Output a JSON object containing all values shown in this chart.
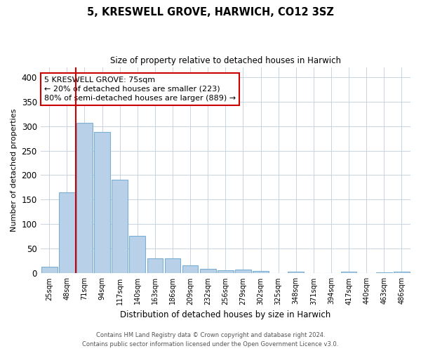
{
  "title": "5, KRESWELL GROVE, HARWICH, CO12 3SZ",
  "subtitle": "Size of property relative to detached houses in Harwich",
  "xlabel": "Distribution of detached houses by size in Harwich",
  "ylabel": "Number of detached properties",
  "categories": [
    "25sqm",
    "48sqm",
    "71sqm",
    "94sqm",
    "117sqm",
    "140sqm",
    "163sqm",
    "186sqm",
    "209sqm",
    "232sqm",
    "256sqm",
    "279sqm",
    "302sqm",
    "325sqm",
    "348sqm",
    "371sqm",
    "394sqm",
    "417sqm",
    "440sqm",
    "463sqm",
    "486sqm"
  ],
  "values": [
    14,
    165,
    307,
    288,
    191,
    77,
    31,
    31,
    16,
    9,
    7,
    8,
    5,
    0,
    4,
    0,
    0,
    3,
    0,
    2,
    3
  ],
  "bar_color": "#b8d0e8",
  "bar_edgecolor": "#7bafd4",
  "vline_color": "#cc0000",
  "annotation_text": "5 KRESWELL GROVE: 75sqm\n← 20% of detached houses are smaller (223)\n80% of semi-detached houses are larger (889) →",
  "annotation_box_color": "#ffffff",
  "annotation_box_edgecolor": "#cc0000",
  "ylim": [
    0,
    420
  ],
  "yticks": [
    0,
    50,
    100,
    150,
    200,
    250,
    300,
    350,
    400
  ],
  "footer_line1": "Contains HM Land Registry data © Crown copyright and database right 2024.",
  "footer_line2": "Contains public sector information licensed under the Open Government Licence v3.0.",
  "background_color": "#ffffff",
  "grid_color": "#c8d4e0",
  "vline_bar_index": 2
}
